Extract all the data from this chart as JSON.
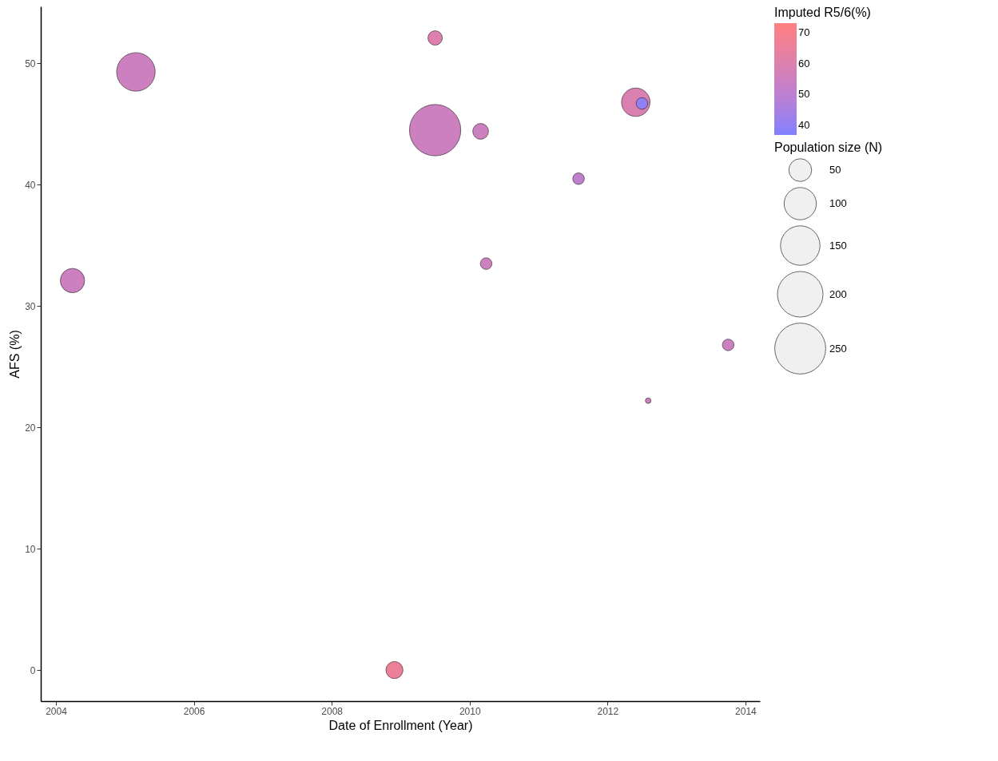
{
  "chart_data": {
    "type": "bubble",
    "xlabel": "Date of Enrollment (Year)",
    "ylabel": "AFS (%)",
    "legend_title": "Population size (N)",
    "clabel": "Imputed R5/6(%)",
    "x": [
      2004.24,
      2005.16,
      2008.91,
      2009.5,
      2009.5,
      2010.16,
      2010.24,
      2011.58,
      2012.41,
      2012.5,
      2012.59,
      2013.75
    ],
    "values": [
      32.1,
      49.3,
      0,
      52.1,
      44.5,
      44.4,
      33.5,
      40.5,
      46.8,
      46.7,
      22.2,
      26.8
    ],
    "sizes": [
      57,
      143,
      28,
      20,
      254,
      24,
      13,
      13,
      78,
      13,
      3,
      13
    ],
    "size_legend": [
      50,
      100,
      150,
      200,
      250
    ],
    "cvalues": [
      55,
      55,
      66,
      60,
      55,
      55,
      55,
      51,
      59,
      40,
      55,
      55
    ],
    "clim": [
      37,
      73
    ],
    "cticks": [
      40,
      50,
      60,
      70
    ],
    "xlim": [
      2003.78,
      2014.21
    ],
    "xticks": [
      2004,
      2006,
      2008,
      2010,
      2012,
      2014
    ],
    "ylim": [
      -2.56,
      54.7
    ],
    "yticks": [
      0,
      10,
      20,
      30,
      40,
      50
    ],
    "grid": false,
    "marker": "circle"
  }
}
